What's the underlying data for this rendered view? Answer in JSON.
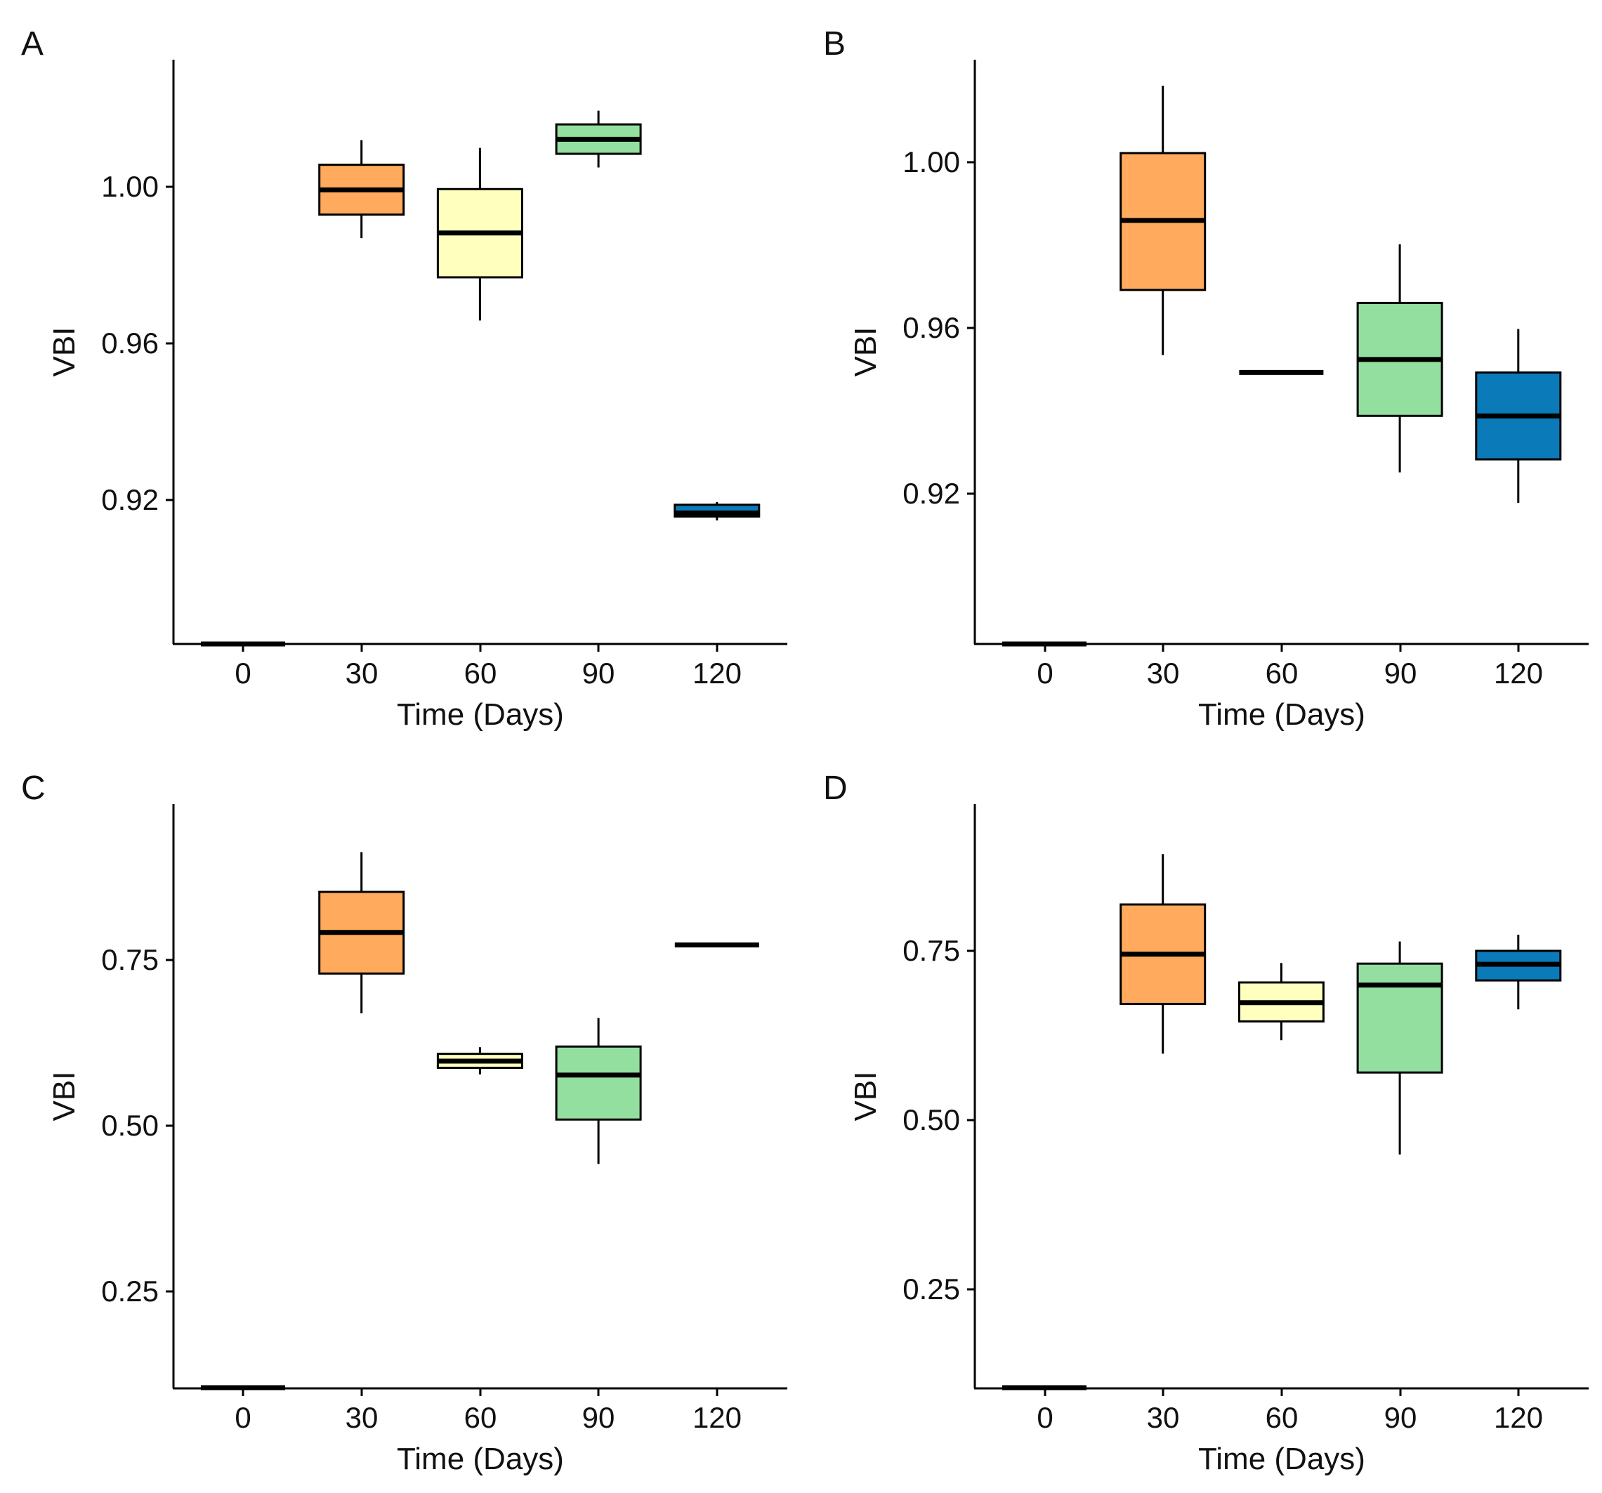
{
  "chart_data": [
    {
      "panel": "A",
      "type": "box",
      "xlabel": "Time (Days)",
      "ylabel": "VBI",
      "categories": [
        "0",
        "30",
        "60",
        "90",
        "120"
      ],
      "yticks": [
        "0.92",
        "0.96",
        "1.00"
      ],
      "ylim": [
        0.89,
        1.039
      ],
      "grid": false,
      "legend": "none",
      "boxes": [
        {
          "x": "0",
          "min": 0.89,
          "q1": 0.89,
          "median": 0.89,
          "q3": 0.89,
          "max": 0.89,
          "color": "#ffaa5c"
        },
        {
          "x": "30",
          "min": 0.9935,
          "q1": 0.9995,
          "median": 1.0058,
          "q3": 1.0122,
          "max": 1.0185,
          "color": "#ffaa5c"
        },
        {
          "x": "60",
          "min": 0.9725,
          "q1": 0.9835,
          "median": 0.9948,
          "q3": 1.006,
          "max": 1.0165,
          "color": "#ffffbe"
        },
        {
          "x": "90",
          "min": 1.0115,
          "q1": 1.015,
          "median": 1.0187,
          "q3": 1.0225,
          "max": 1.026,
          "color": "#93dfa0"
        },
        {
          "x": "120",
          "min": 0.9215,
          "q1": 0.9225,
          "median": 0.9234,
          "q3": 0.9255,
          "max": 0.9262,
          "color": "#0a7ab8"
        }
      ]
    },
    {
      "panel": "B",
      "type": "box",
      "xlabel": "Time (Days)",
      "ylabel": "VBI",
      "categories": [
        "0",
        "30",
        "60",
        "90",
        "120"
      ],
      "yticks": [
        "0.92",
        "0.96",
        "1.00"
      ],
      "ylim": [
        0.89,
        1.0245
      ],
      "grid": false,
      "legend": "none",
      "boxes": [
        {
          "x": "0",
          "min": 0.89,
          "q1": 0.89,
          "median": 0.89,
          "q3": 0.89,
          "max": 0.89,
          "color": "#ffaa5c"
        },
        {
          "x": "30",
          "min": 0.9565,
          "q1": 0.9715,
          "median": 0.9875,
          "q3": 1.003,
          "max": 1.0185,
          "color": "#ffaa5c"
        },
        {
          "x": "60",
          "min": 0.9525,
          "q1": 0.9525,
          "median": 0.9525,
          "q3": 0.9525,
          "max": 0.9525,
          "color": "#ffffbe"
        },
        {
          "x": "90",
          "min": 0.9295,
          "q1": 0.9425,
          "median": 0.9555,
          "q3": 0.9685,
          "max": 0.982,
          "color": "#93dfa0"
        },
        {
          "x": "120",
          "min": 0.9225,
          "q1": 0.9325,
          "median": 0.9425,
          "q3": 0.9525,
          "max": 0.9625,
          "color": "#0a7ab8"
        }
      ]
    },
    {
      "panel": "C",
      "type": "box",
      "xlabel": "Time (Days)",
      "ylabel": "VBI",
      "categories": [
        "0",
        "30",
        "60",
        "90",
        "120"
      ],
      "yticks": [
        "0.25",
        "0.50",
        "0.75"
      ],
      "ylim": [
        0.14,
        1.0203
      ],
      "grid": false,
      "legend": "none",
      "boxes": [
        {
          "x": "0",
          "min": 0.141,
          "q1": 0.141,
          "median": 0.141,
          "q3": 0.141,
          "max": 0.141,
          "color": "#ffaa5c"
        },
        {
          "x": "30",
          "min": 0.705,
          "q1": 0.765,
          "median": 0.827,
          "q3": 0.888,
          "max": 0.948,
          "color": "#ffaa5c"
        },
        {
          "x": "60",
          "min": 0.613,
          "q1": 0.623,
          "median": 0.633,
          "q3": 0.644,
          "max": 0.654,
          "color": "#ffffbe"
        },
        {
          "x": "90",
          "min": 0.478,
          "q1": 0.545,
          "median": 0.612,
          "q3": 0.655,
          "max": 0.698,
          "color": "#93dfa0"
        },
        {
          "x": "120",
          "min": 0.808,
          "q1": 0.808,
          "median": 0.808,
          "q3": 0.808,
          "max": 0.808,
          "color": "#0a7ab8"
        }
      ]
    },
    {
      "panel": "D",
      "type": "box",
      "xlabel": "Time (Days)",
      "ylabel": "VBI",
      "categories": [
        "0",
        "30",
        "60",
        "90",
        "120"
      ],
      "yticks": [
        "0.25",
        "0.50",
        "0.75"
      ],
      "ylim": [
        0.14,
        1.0094
      ],
      "grid": false,
      "legend": "none",
      "boxes": [
        {
          "x": "0",
          "min": 0.141,
          "q1": 0.141,
          "median": 0.141,
          "q3": 0.141,
          "max": 0.141,
          "color": "#ffaa5c"
        },
        {
          "x": "30",
          "min": 0.638,
          "q1": 0.712,
          "median": 0.786,
          "q3": 0.86,
          "max": 0.935,
          "color": "#ffaa5c"
        },
        {
          "x": "60",
          "min": 0.658,
          "q1": 0.686,
          "median": 0.714,
          "q3": 0.744,
          "max": 0.773,
          "color": "#ffffbe"
        },
        {
          "x": "90",
          "min": 0.488,
          "q1": 0.61,
          "median": 0.74,
          "q3": 0.772,
          "max": 0.805,
          "color": "#93dfa0"
        },
        {
          "x": "120",
          "min": 0.704,
          "q1": 0.747,
          "median": 0.771,
          "q3": 0.791,
          "max": 0.815,
          "color": "#0a7ab8"
        }
      ]
    }
  ]
}
